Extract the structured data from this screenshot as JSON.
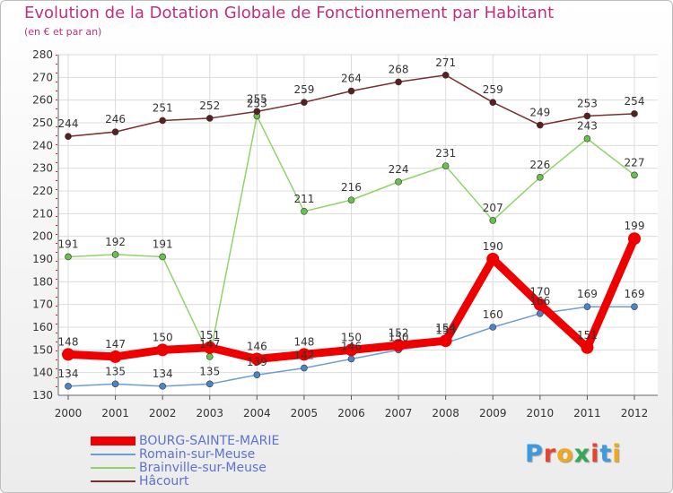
{
  "title": "Evolution de la Dotation Globale de Fonctionnement par Habitant",
  "subtitle": "(en € et par an)",
  "logo": {
    "letters": [
      "P",
      "r",
      "o",
      "x",
      "i",
      "t",
      "i"
    ],
    "colors": [
      "#3c9be0",
      "#e8432e",
      "#f0a81c",
      "#34a853",
      "#e8432e",
      "#3c9be0",
      "#f0a81c"
    ]
  },
  "chart_data": {
    "type": "line",
    "title": "Evolution de la Dotation Globale de Fonctionnement par Habitant",
    "subtitle": "(en € et par an)",
    "x": [
      "2000",
      "2001",
      "2002",
      "2003",
      "2004",
      "2005",
      "2006",
      "2007",
      "2008",
      "2009",
      "2010",
      "2011",
      "2012"
    ],
    "ylim": [
      130,
      280
    ],
    "yticks": [
      130,
      140,
      150,
      160,
      170,
      180,
      190,
      200,
      210,
      220,
      230,
      240,
      250,
      260,
      270,
      280
    ],
    "grid": true,
    "legend_position": "bottom-left",
    "series": [
      {
        "name": "BOURG-SAINTE-MARIE",
        "color": "#ee0000",
        "values": [
          148,
          147,
          150,
          151,
          146,
          148,
          150,
          152,
          154,
          190,
          170,
          151,
          199
        ]
      },
      {
        "name": "Romain-sur-Meuse",
        "color": "#6a9fd4",
        "values": [
          134,
          135,
          134,
          135,
          139,
          142,
          146,
          150,
          153,
          160,
          166,
          169,
          169
        ]
      },
      {
        "name": "Brainville-sur-Meuse",
        "color": "#8fd46a",
        "values": [
          191,
          192,
          191,
          147,
          253,
          211,
          216,
          224,
          231,
          207,
          226,
          243,
          227
        ]
      },
      {
        "name": "Hâcourt",
        "color": "#7a2f2f",
        "values": [
          244,
          246,
          251,
          252,
          255,
          259,
          264,
          268,
          271,
          259,
          249,
          253,
          254
        ]
      }
    ]
  }
}
